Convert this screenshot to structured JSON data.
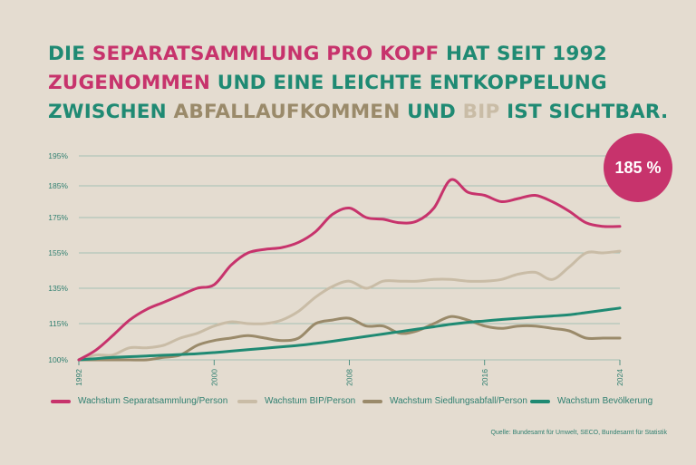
{
  "headline": {
    "line1": [
      {
        "text": "DIE ",
        "color": "green"
      },
      {
        "text": "SEPARATSAMMLUNG PRO KOPF",
        "color": "pink"
      },
      {
        "text": " HAT SEIT 1992",
        "color": "green"
      }
    ],
    "line2": [
      {
        "text": "ZUGENOMMEN",
        "color": "pink"
      },
      {
        "text": " UND EINE LEICHTE ENTKOPPELUNG",
        "color": "green"
      }
    ],
    "line3": [
      {
        "text": "ZWISCHEN ",
        "color": "green"
      },
      {
        "text": "ABFALLAUFKOMMEN",
        "color": "brown"
      },
      {
        "text": " UND ",
        "color": "green"
      },
      {
        "text": "BIP",
        "color": "beige"
      },
      {
        "text": " IST SICHTBAR.",
        "color": "green"
      }
    ]
  },
  "badge": {
    "text": "185 %"
  },
  "source": "Quelle: Bundesamt für Umwelt, SECO, Bundesamt für Statistik",
  "colors": {
    "background": "#e4dcd0",
    "green": "#1f8a73",
    "pink": "#c7336c",
    "brown": "#9a8a6a",
    "beige": "#c9bca6",
    "axis_text": "#2f7f70",
    "grid": "#8fb7aa"
  },
  "chart_data": {
    "type": "line",
    "xlim": [
      1992,
      2024
    ],
    "x_ticks": [
      "1992",
      "2000",
      "2008",
      "2016",
      "2024"
    ],
    "y_ticks": [
      "100%",
      "115%",
      "135%",
      "155%",
      "175%",
      "185%",
      "195%"
    ],
    "y_tick_values": [
      100,
      115,
      135,
      155,
      175,
      185,
      195
    ],
    "grid": true,
    "legend_position": "bottom",
    "series": [
      {
        "name": "Wachstum Separatsammlung/Person",
        "color": "#c7336c",
        "x": [
          1992,
          1993,
          1994,
          1995,
          1996,
          1997,
          1998,
          1999,
          2000,
          2001,
          2002,
          2003,
          2004,
          2005,
          2006,
          2007,
          2008,
          2009,
          2010,
          2011,
          2012,
          2013,
          2014,
          2015,
          2016,
          2017,
          2018,
          2019,
          2020,
          2021,
          2022,
          2023,
          2024
        ],
        "values": [
          100,
          104,
          110,
          117,
          123,
          127,
          131,
          135,
          137,
          148,
          155,
          157,
          158,
          161,
          167,
          176,
          178,
          175,
          174,
          172,
          173,
          178,
          187,
          183,
          182,
          180,
          181,
          182,
          180,
          177,
          172,
          170,
          170
        ]
      },
      {
        "name": "Wachstum BIP/Person",
        "color": "#c9bca6",
        "x": [
          1992,
          1993,
          1994,
          1995,
          1996,
          1997,
          1998,
          1999,
          2000,
          2001,
          2002,
          2003,
          2004,
          2005,
          2006,
          2007,
          2008,
          2009,
          2010,
          2011,
          2012,
          2013,
          2014,
          2015,
          2016,
          2017,
          2018,
          2019,
          2020,
          2021,
          2022,
          2023,
          2024
        ],
        "values": [
          100,
          102,
          102,
          105,
          105,
          106,
          109,
          111,
          114,
          116,
          115,
          115,
          117,
          122,
          130,
          136,
          139,
          135,
          139,
          139,
          139,
          140,
          140,
          139,
          139,
          140,
          143,
          144,
          140,
          147,
          155,
          155,
          156
        ]
      },
      {
        "name": "Wachstum Siedlungsabfall/Person",
        "color": "#9a8a6a",
        "x": [
          1992,
          1993,
          1994,
          1995,
          1996,
          1997,
          1998,
          1999,
          2000,
          2001,
          2002,
          2003,
          2004,
          2005,
          2006,
          2007,
          2008,
          2009,
          2010,
          2011,
          2012,
          2013,
          2014,
          2015,
          2016,
          2017,
          2018,
          2019,
          2020,
          2021,
          2022,
          2023,
          2024
        ],
        "values": [
          100,
          100,
          100,
          100,
          100,
          101,
          102,
          106,
          108,
          109,
          110,
          109,
          108,
          109,
          115,
          117,
          118,
          114,
          114,
          111,
          112,
          115,
          119,
          117,
          114,
          113,
          114,
          114,
          113,
          112,
          109,
          109,
          109
        ]
      },
      {
        "name": "Wachstum Bevölkerung",
        "color": "#1f8a73",
        "x": [
          1992,
          1993,
          1994,
          1995,
          1996,
          1997,
          1998,
          1999,
          2000,
          2001,
          2002,
          2003,
          2004,
          2005,
          2006,
          2007,
          2008,
          2009,
          2010,
          2011,
          2012,
          2013,
          2014,
          2015,
          2016,
          2017,
          2018,
          2019,
          2020,
          2021,
          2022,
          2023,
          2024
        ],
        "values": [
          100,
          100.5,
          101,
          101.3,
          101.6,
          101.9,
          102.2,
          102.5,
          103,
          103.6,
          104.2,
          104.8,
          105.4,
          106,
          106.8,
          107.7,
          108.7,
          109.7,
          110.7,
          111.7,
          112.7,
          113.7,
          114.7,
          115.7,
          116.5,
          117.3,
          118,
          118.7,
          119.3,
          120,
          121.2,
          122.5,
          123.8
        ]
      }
    ]
  }
}
